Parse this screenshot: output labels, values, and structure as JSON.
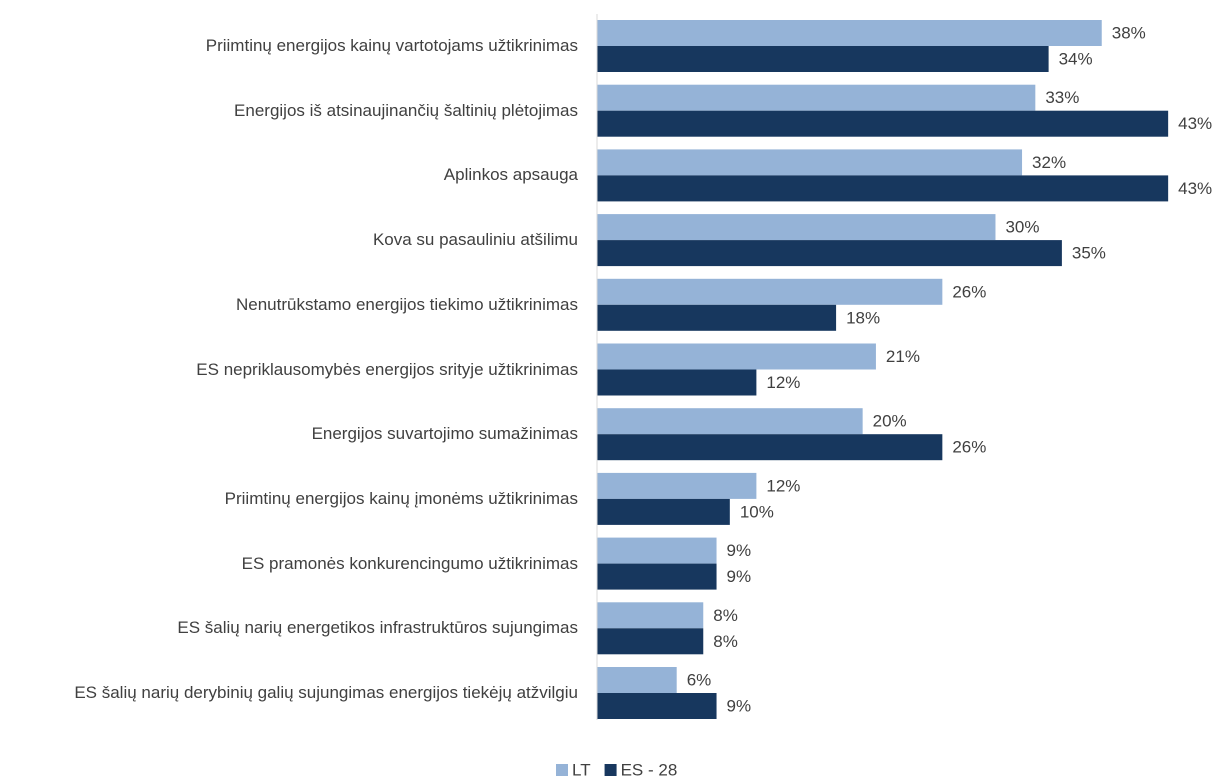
{
  "chart_data": {
    "type": "hbar",
    "categories": [
      "Priimtinų energijos kainų vartotojams užtikrinimas",
      "Energijos iš atsinaujinančių šaltinių plėtojimas",
      "Aplinkos apsauga",
      "Kova su pasauliniu atšilimu",
      "Nenutrūkstamo energijos tiekimo užtikrinimas",
      "ES nepriklausomybės energijos srityje užtikrinimas",
      "Energijos suvartojimo sumažinimas",
      "Priimtinų energijos kainų įmonėms užtikrinimas",
      "ES pramonės konkurencingumo užtikrinimas",
      "ES šalių narių energetikos infrastruktūros sujungimas",
      "ES šalių narių derybinių galių sujungimas energijos tiekėjų atžvilgiu"
    ],
    "series": [
      {
        "name": "LT",
        "color": "#95b3d7",
        "values": [
          38,
          33,
          32,
          30,
          26,
          21,
          20,
          12,
          9,
          8,
          6
        ],
        "value_labels": [
          "38%",
          "33%",
          "32%",
          "30%",
          "26%",
          "21%",
          "20%",
          "12%",
          "9%",
          "8%",
          "6%"
        ]
      },
      {
        "name": "ES - 28",
        "color": "#17375e",
        "values": [
          34,
          43,
          43,
          35,
          18,
          12,
          26,
          10,
          9,
          8,
          9
        ],
        "value_labels": [
          "34%",
          "43%",
          "43%",
          "35%",
          "18%",
          "12%",
          "26%",
          "10%",
          "9%",
          "8%",
          "9%"
        ]
      }
    ],
    "xlim": [
      0,
      46
    ]
  }
}
